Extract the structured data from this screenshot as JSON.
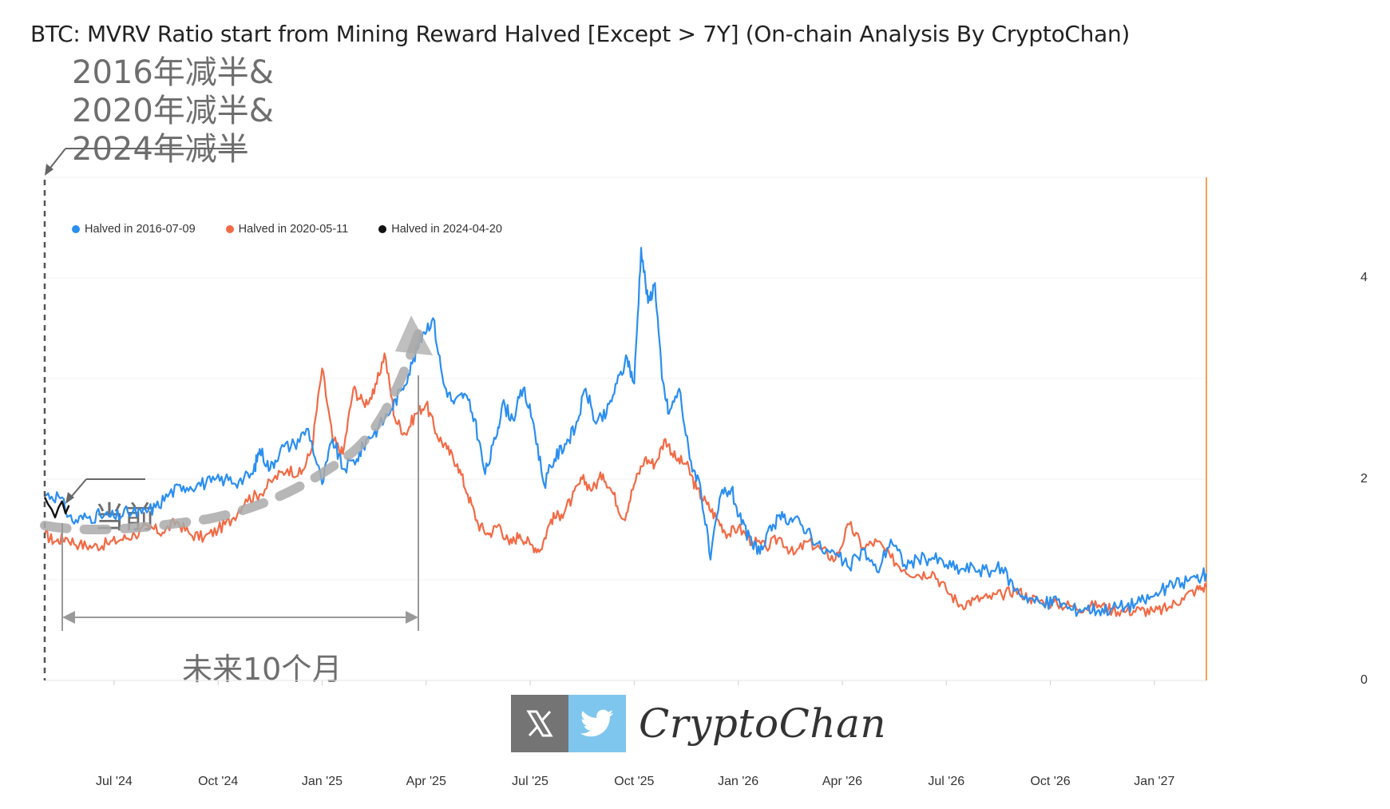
{
  "title": "BTC: MVRV Ratio start from Mining Reward Halved [Except > 7Y] (On-chain Analysis By CryptoChan)",
  "annotations": {
    "halving_line1": "2016年减半&",
    "halving_line2": "2020年减半&",
    "halving_line3": "2024年减半",
    "current": "当前",
    "future": "未来10个月"
  },
  "watermark": {
    "text": "CryptoChan",
    "icons": [
      "x-logo-icon",
      "twitter-bird-icon"
    ]
  },
  "colors": {
    "blue": "#2a8ef0",
    "orange": "#f26a45",
    "black": "#111111",
    "axis_right": "#f5a053",
    "annotation_gray": "#999999"
  },
  "chart_data": {
    "type": "line",
    "title": "BTC: MVRV Ratio start from Mining Reward Halved [Except > 7Y] (On-chain Analysis By CryptoChan)",
    "x_tick_labels": [
      "Jul '24",
      "Oct '24",
      "Jan '25",
      "Apr '25",
      "Jul '25",
      "Oct '25",
      "Jan '26",
      "Apr '26",
      "Jul '26",
      "Oct '26",
      "Jan '27"
    ],
    "x_ticks_month_offset": [
      2,
      5,
      8,
      11,
      14,
      17,
      20,
      23,
      26,
      29,
      32
    ],
    "x_range_month_offset": [
      0,
      33.5
    ],
    "y_tick_labels": [
      "0",
      "2",
      "4"
    ],
    "ylim": [
      0,
      5
    ],
    "y_axis_position": "right",
    "legend_position": "top-left",
    "series": [
      {
        "name": "Halved in 2016-07-09",
        "color": "#2a8ef0",
        "x": [
          0,
          0.4,
          0.8,
          1.2,
          1.6,
          2.0,
          2.4,
          2.8,
          3.2,
          3.6,
          4.0,
          4.4,
          4.8,
          5.2,
          5.6,
          6.0,
          6.2,
          6.5,
          6.8,
          7.2,
          7.6,
          8.0,
          8.3,
          8.6,
          9.0,
          9.3,
          9.6,
          10.0,
          10.3,
          10.6,
          10.9,
          11.2,
          11.5,
          11.8,
          12.1,
          12.4,
          12.7,
          13.0,
          13.2,
          13.5,
          13.8,
          14.1,
          14.4,
          14.7,
          15.0,
          15.3,
          15.6,
          15.9,
          16.2,
          16.5,
          16.8,
          17.0,
          17.2,
          17.4,
          17.6,
          17.8,
          18.0,
          18.3,
          18.6,
          18.9,
          19.2,
          19.5,
          19.8,
          20.1,
          20.4,
          20.7,
          21.0,
          21.3,
          21.6,
          22.0,
          22.4,
          22.8,
          23.2,
          23.6,
          24.0,
          24.4,
          24.8,
          25.2,
          25.6,
          26.0,
          26.4,
          26.8,
          27.2,
          27.6,
          28.0,
          28.4,
          28.8,
          29.2,
          29.6,
          30.0,
          30.4,
          30.8,
          31.2,
          31.6,
          32.0,
          32.4,
          32.8,
          33.2,
          33.5
        ],
        "y": [
          1.85,
          1.83,
          1.58,
          1.62,
          1.64,
          1.62,
          1.67,
          1.66,
          1.72,
          1.86,
          1.93,
          1.95,
          1.97,
          2.0,
          1.98,
          2.05,
          2.3,
          2.1,
          2.3,
          2.35,
          2.5,
          1.95,
          2.4,
          2.1,
          2.2,
          2.4,
          2.5,
          2.7,
          2.9,
          3.15,
          3.45,
          3.6,
          2.95,
          2.75,
          2.85,
          2.6,
          2.05,
          2.4,
          2.75,
          2.6,
          2.9,
          2.55,
          1.95,
          2.2,
          2.35,
          2.5,
          2.9,
          2.55,
          2.65,
          2.95,
          3.2,
          2.95,
          4.3,
          3.75,
          3.95,
          3.0,
          2.65,
          2.9,
          2.2,
          1.95,
          1.2,
          1.85,
          1.9,
          1.55,
          1.35,
          1.3,
          1.55,
          1.62,
          1.6,
          1.5,
          1.3,
          1.25,
          1.12,
          1.3,
          1.08,
          1.4,
          1.15,
          1.2,
          1.22,
          1.15,
          1.1,
          1.12,
          1.08,
          1.12,
          0.9,
          0.82,
          0.75,
          0.8,
          0.7,
          0.72,
          0.7,
          0.72,
          0.74,
          0.78,
          0.84,
          0.93,
          0.97,
          1.02,
          1.06
        ]
      },
      {
        "name": "Halved in 2020-05-11",
        "color": "#f26a45",
        "x": [
          0,
          0.3,
          0.6,
          1.0,
          1.4,
          1.8,
          2.2,
          2.6,
          3.0,
          3.4,
          3.8,
          4.2,
          4.6,
          5.0,
          5.4,
          5.8,
          6.2,
          6.6,
          7.0,
          7.4,
          7.7,
          8.0,
          8.3,
          8.6,
          8.9,
          9.2,
          9.5,
          9.8,
          10.1,
          10.4,
          10.7,
          11.0,
          11.3,
          11.6,
          11.9,
          12.2,
          12.5,
          12.8,
          13.1,
          13.4,
          13.7,
          14.0,
          14.3,
          14.6,
          14.9,
          15.2,
          15.5,
          15.8,
          16.1,
          16.4,
          16.7,
          17.0,
          17.3,
          17.6,
          17.9,
          18.2,
          18.5,
          18.8,
          19.1,
          19.4,
          19.7,
          20.0,
          20.4,
          20.8,
          21.2,
          21.6,
          22.0,
          22.4,
          22.8,
          23.2,
          23.6,
          24.0,
          24.4,
          24.8,
          25.2,
          25.6,
          26.0,
          26.4,
          26.8,
          27.2,
          27.6,
          28.0,
          28.4,
          28.8,
          29.2,
          29.6,
          30.0,
          30.4,
          30.8,
          31.2,
          31.6,
          32.0,
          32.4,
          32.8,
          33.2,
          33.5
        ],
        "y": [
          1.45,
          1.38,
          1.42,
          1.35,
          1.33,
          1.36,
          1.4,
          1.45,
          1.52,
          1.47,
          1.58,
          1.45,
          1.42,
          1.5,
          1.6,
          1.8,
          1.85,
          2.0,
          2.1,
          2.05,
          2.3,
          3.1,
          2.4,
          2.25,
          2.9,
          2.75,
          2.85,
          3.25,
          2.6,
          2.45,
          2.65,
          2.75,
          2.45,
          2.3,
          2.15,
          1.85,
          1.55,
          1.45,
          1.55,
          1.35,
          1.45,
          1.35,
          1.3,
          1.6,
          1.65,
          1.8,
          2.0,
          1.9,
          2.05,
          1.85,
          1.6,
          1.95,
          2.2,
          2.15,
          2.4,
          2.2,
          2.15,
          1.9,
          1.75,
          1.6,
          1.45,
          1.52,
          1.38,
          1.32,
          1.42,
          1.25,
          1.38,
          1.3,
          1.2,
          1.55,
          1.32,
          1.38,
          1.22,
          1.1,
          1.05,
          1.08,
          0.9,
          0.75,
          0.8,
          0.82,
          0.85,
          0.9,
          0.82,
          0.78,
          0.76,
          0.74,
          0.72,
          0.75,
          0.7,
          0.69,
          0.7,
          0.68,
          0.72,
          0.82,
          0.9,
          0.93
        ]
      },
      {
        "name": "Halved in 2024-04-20",
        "color": "#111111",
        "x": [
          0,
          0.1,
          0.2,
          0.3,
          0.4,
          0.5,
          0.6,
          0.7
        ],
        "y": [
          1.82,
          1.75,
          1.7,
          1.62,
          1.72,
          1.78,
          1.66,
          1.74
        ]
      }
    ]
  }
}
